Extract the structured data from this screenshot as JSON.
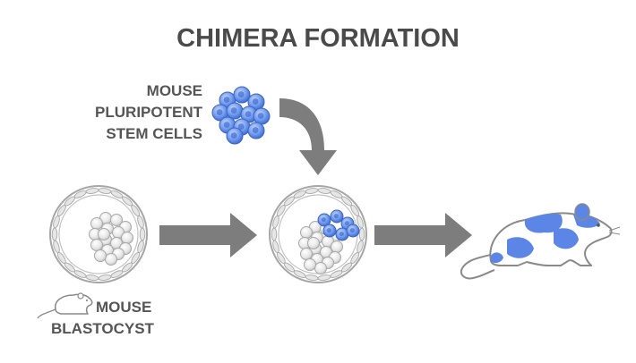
{
  "title": "CHIMERA FORMATION",
  "labels": {
    "stem_cells": [
      "MOUSE",
      "PLURIPOTENT",
      "STEM CELLS"
    ],
    "blastocyst": [
      "MOUSE",
      "BLASTOCYST"
    ]
  },
  "colors": {
    "stem_cell_blue": "#5b86e5",
    "stem_cell_blue_light": "#9fbcf2",
    "arrow_gray": "#7d7d7d",
    "cell_gray": "#e0e0e0",
    "outline_gray": "#a6a6a6",
    "text_gray": "#555555"
  }
}
